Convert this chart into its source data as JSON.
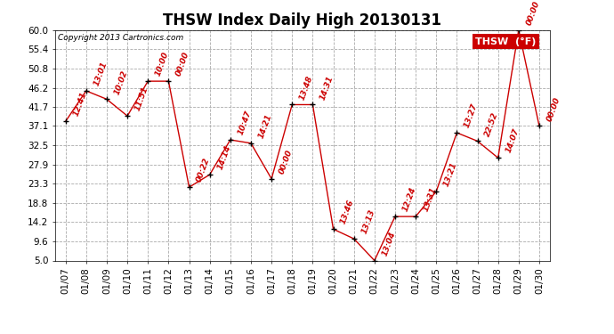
{
  "title": "THSW Index Daily High 20130131",
  "copyright": "Copyright 2013 Cartronics.com",
  "legend_label": "THSW  (°F)",
  "dates": [
    "01/07",
    "01/08",
    "01/09",
    "01/10",
    "01/11",
    "01/12",
    "01/13",
    "01/14",
    "01/15",
    "01/16",
    "01/17",
    "01/18",
    "01/19",
    "01/20",
    "01/21",
    "01/22",
    "01/23",
    "01/24",
    "01/25",
    "01/26",
    "01/27",
    "01/28",
    "01/29",
    "01/30"
  ],
  "values": [
    38.2,
    45.5,
    43.5,
    39.5,
    47.8,
    47.8,
    22.5,
    25.5,
    33.8,
    33.0,
    24.5,
    42.2,
    42.2,
    12.5,
    10.2,
    5.0,
    15.5,
    15.5,
    21.5,
    35.5,
    33.5,
    29.5,
    60.0,
    37.1
  ],
  "time_labels": [
    "12:41",
    "13:01",
    "10:02",
    "11:51",
    "10:00",
    "00:00",
    "00:22",
    "14:14",
    "10:47",
    "14:21",
    "00:00",
    "13:48",
    "14:31",
    "13:46",
    "13:13",
    "13:04",
    "12:24",
    "13:31",
    "13:21",
    "13:27",
    "22:52",
    "14:07",
    "00:00",
    "00:00"
  ],
  "line_color": "#CC0000",
  "marker_color": "#000000",
  "label_color": "#CC0000",
  "background_color": "#FFFFFF",
  "grid_color": "#AAAAAA",
  "ylim": [
    5.0,
    60.0
  ],
  "yticks": [
    5.0,
    9.6,
    14.2,
    18.8,
    23.3,
    27.9,
    32.5,
    37.1,
    41.7,
    46.2,
    50.8,
    55.4,
    60.0
  ],
  "title_fontsize": 12,
  "label_fontsize": 6.5,
  "tick_fontsize": 7.5,
  "legend_bg": "#CC0000",
  "legend_text_color": "#FFFFFF"
}
